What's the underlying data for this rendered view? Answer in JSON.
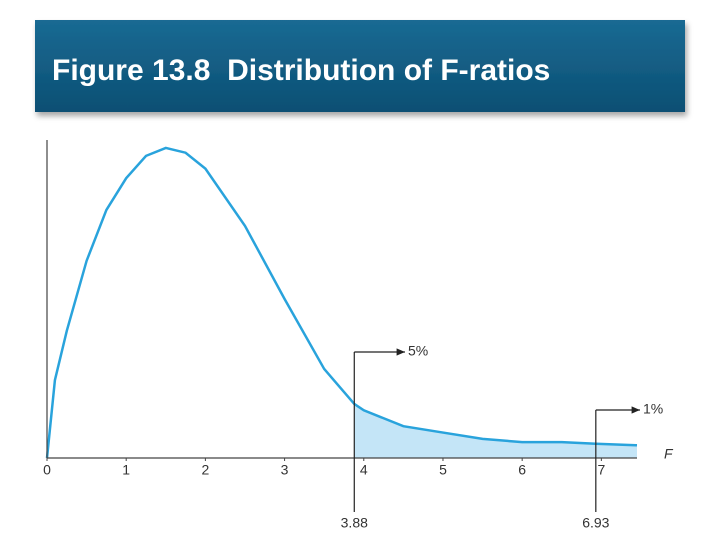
{
  "chart_data": {
    "type": "area",
    "title": "Figure 13.8  Distribution of F-ratios",
    "x_label": "F",
    "x": [
      0,
      0.1,
      0.25,
      0.5,
      0.75,
      1.0,
      1.25,
      1.5,
      1.75,
      2.0,
      2.5,
      3.0,
      3.5,
      3.88,
      4.0,
      4.5,
      5.0,
      5.5,
      6.0,
      6.5,
      6.93,
      7.45
    ],
    "values": [
      0,
      0.245,
      0.4,
      0.62,
      0.78,
      0.88,
      0.95,
      0.975,
      0.96,
      0.91,
      0.73,
      0.5,
      0.28,
      0.17,
      0.15,
      0.1,
      0.08,
      0.06,
      0.05,
      0.05,
      0.045,
      0.04
    ],
    "color": "#29a3dc",
    "shade_color": "#c4e5f7",
    "xlim": [
      0,
      7.45
    ],
    "xticks": [
      0,
      1,
      2,
      3,
      4,
      5,
      6,
      7
    ],
    "ylim": [
      0,
      1
    ],
    "critical_values": [
      3.88,
      6.93
    ],
    "tail_labels": [
      "5%",
      "1%"
    ]
  }
}
